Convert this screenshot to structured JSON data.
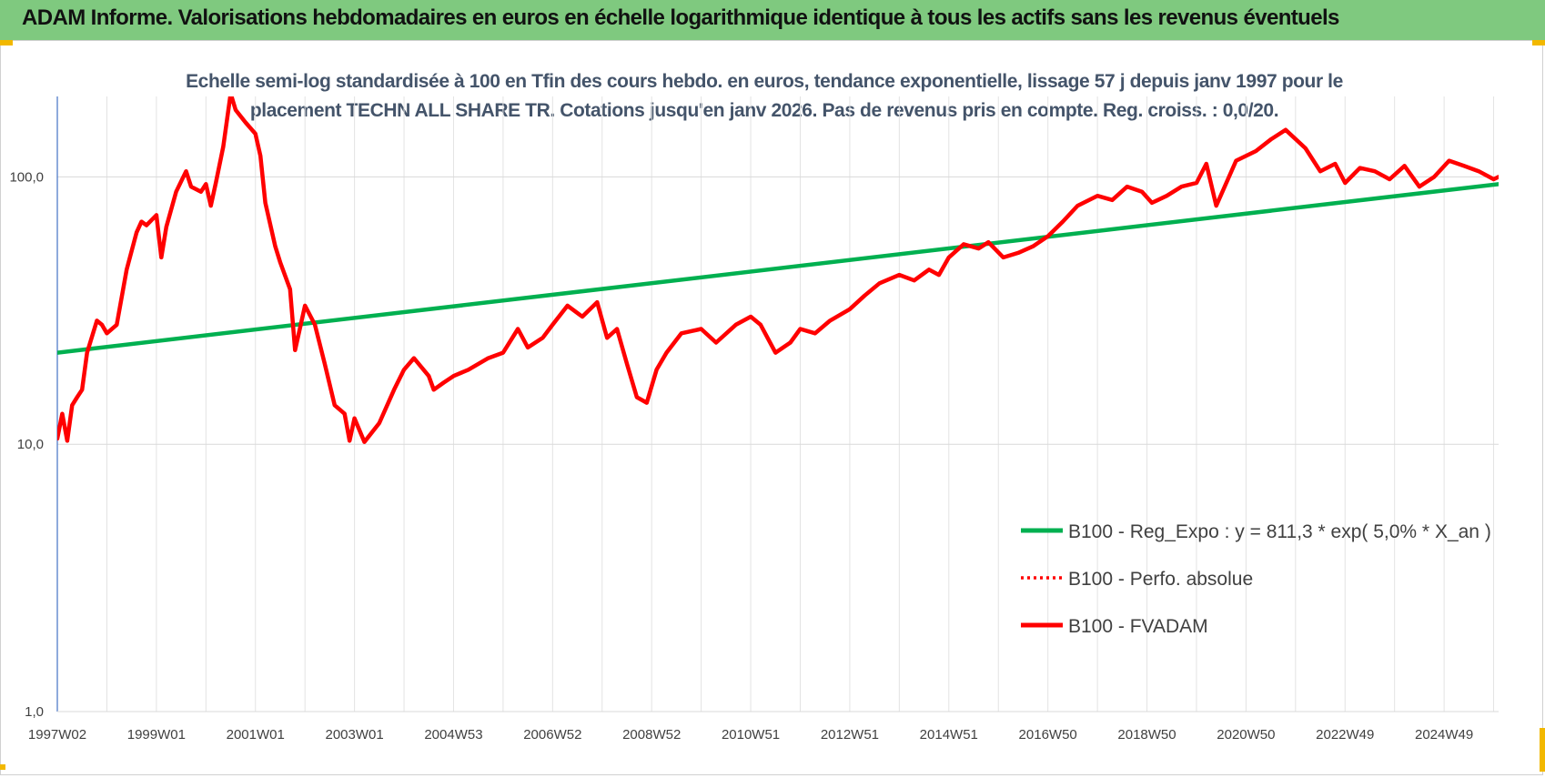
{
  "banner": {
    "title": "ADAM Informe. Valorisations hebdomadaires en euros en échelle logarithmique identique à tous les actifs sans les revenus éventuels"
  },
  "chart_data": {
    "type": "line",
    "title": "Echelle semi-log standardisée à 100 en Tfin des cours hebdo. en euros, tendance exponentielle, lissage 57 j depuis janv 1997 pour le placement TECHN ALL SHARE TR. Cotations jusqu'en janv 2026. Pas de revenus pris en compte. Reg. croiss. : 0,0/20.",
    "title_line1": "Echelle semi-log standardisée à 100 en Tfin des cours hebdo. en euros, tendance exponentielle, lissage 57 j depuis janv 1997 pour le",
    "title_line2": "placement TECHN ALL SHARE TR. Cotations jusqu'en janv 2026. Pas de revenus pris en compte. Reg. croiss. : 0,0/20.",
    "y_scale": "log",
    "ylim": [
      1,
      200
    ],
    "xlim": [
      1997.0,
      2026.1
    ],
    "grid": true,
    "legend_position": "bottom-right",
    "y_ticks": [
      {
        "value": 1,
        "label": "1,0"
      },
      {
        "value": 10,
        "label": "10,0"
      },
      {
        "value": 100,
        "label": "100,0"
      }
    ],
    "x_ticks": [
      {
        "value": 1997.0,
        "label": "1997W02"
      },
      {
        "value": 1999.0,
        "label": "1999W01"
      },
      {
        "value": 2001.0,
        "label": "2001W01"
      },
      {
        "value": 2003.0,
        "label": "2003W01"
      },
      {
        "value": 2005.0,
        "label": "2004W53"
      },
      {
        "value": 2007.0,
        "label": "2006W52"
      },
      {
        "value": 2009.0,
        "label": "2008W52"
      },
      {
        "value": 2011.0,
        "label": "2010W51"
      },
      {
        "value": 2013.0,
        "label": "2012W51"
      },
      {
        "value": 2015.0,
        "label": "2014W51"
      },
      {
        "value": 2017.0,
        "label": "2016W50"
      },
      {
        "value": 2019.0,
        "label": "2018W50"
      },
      {
        "value": 2021.0,
        "label": "2020W50"
      },
      {
        "value": 2023.0,
        "label": "2022W49"
      },
      {
        "value": 2025.0,
        "label": "2024W49"
      }
    ],
    "series": [
      {
        "name": "B100 - Reg_Expo : y = 811,3 * exp( 5,0% *  X_an )",
        "color": "#00b050",
        "style": "solid",
        "x": [
          1997.0,
          2026.1
        ],
        "values": [
          22.0,
          94.0
        ]
      },
      {
        "name": "B100 - Perfo. absolue",
        "color": "#ff0000",
        "style": "dotted",
        "x": [],
        "values": []
      },
      {
        "name": "B100 - FVADAM",
        "color": "#ff0000",
        "style": "solid",
        "x": [
          1997.0,
          1997.1,
          1997.2,
          1997.3,
          1997.4,
          1997.5,
          1997.6,
          1997.8,
          1997.9,
          1998.0,
          1998.2,
          1998.4,
          1998.6,
          1998.7,
          1998.8,
          1999.0,
          1999.1,
          1999.2,
          1999.4,
          1999.6,
          1999.7,
          1999.9,
          2000.0,
          2000.1,
          2000.2,
          2000.35,
          2000.5,
          2000.6,
          2000.8,
          2001.0,
          2001.1,
          2001.2,
          2001.4,
          2001.5,
          2001.7,
          2001.8,
          2002.0,
          2002.2,
          2002.4,
          2002.6,
          2002.8,
          2002.9,
          2003.0,
          2003.2,
          2003.5,
          2003.8,
          2004.0,
          2004.2,
          2004.5,
          2004.6,
          2004.8,
          2005.0,
          2005.3,
          2005.7,
          2006.0,
          2006.3,
          2006.5,
          2006.8,
          2007.0,
          2007.3,
          2007.6,
          2007.9,
          2008.1,
          2008.3,
          2008.5,
          2008.7,
          2008.9,
          2009.1,
          2009.3,
          2009.6,
          2010.0,
          2010.3,
          2010.7,
          2011.0,
          2011.2,
          2011.5,
          2011.8,
          2012.0,
          2012.3,
          2012.6,
          2013.0,
          2013.3,
          2013.6,
          2014.0,
          2014.3,
          2014.6,
          2014.8,
          2015.0,
          2015.3,
          2015.6,
          2015.8,
          2016.1,
          2016.4,
          2016.7,
          2017.0,
          2017.3,
          2017.6,
          2018.0,
          2018.3,
          2018.6,
          2018.9,
          2019.1,
          2019.4,
          2019.7,
          2020.0,
          2020.2,
          2020.4,
          2020.8,
          2021.2,
          2021.5,
          2021.8,
          2022.2,
          2022.5,
          2022.8,
          2023.0,
          2023.3,
          2023.6,
          2023.9,
          2024.2,
          2024.5,
          2024.8,
          2025.1,
          2025.4,
          2025.7,
          2026.0,
          2026.1
        ],
        "values": [
          10.5,
          13.0,
          10.3,
          14.0,
          15.0,
          16.0,
          22.0,
          29.0,
          28.0,
          26.0,
          28.0,
          45.0,
          62.0,
          68.0,
          66.0,
          72.0,
          50.0,
          65.0,
          88.0,
          105.0,
          92.0,
          88.0,
          94.0,
          78.0,
          95.0,
          130.0,
          205.0,
          178.0,
          160.0,
          145.0,
          120.0,
          80.0,
          55.0,
          48.0,
          38.0,
          22.5,
          33.0,
          28.0,
          20.0,
          14.0,
          13.0,
          10.3,
          12.5,
          10.2,
          12.0,
          16.0,
          19.0,
          21.0,
          18.0,
          16.0,
          17.0,
          18.0,
          19.0,
          21.0,
          22.0,
          27.0,
          23.0,
          25.0,
          28.0,
          33.0,
          30.0,
          34.0,
          25.0,
          27.0,
          20.0,
          15.0,
          14.3,
          19.0,
          22.0,
          26.0,
          27.0,
          24.0,
          28.0,
          30.0,
          28.0,
          22.0,
          24.0,
          27.0,
          26.0,
          29.0,
          32.0,
          36.0,
          40.0,
          43.0,
          41.0,
          45.0,
          43.0,
          50.0,
          56.0,
          54.0,
          57.0,
          50.0,
          52.0,
          55.0,
          60.0,
          68.0,
          78.0,
          85.0,
          82.0,
          92.0,
          88.0,
          80.0,
          85.0,
          92.0,
          95.0,
          112.0,
          78.0,
          115.0,
          125.0,
          138.0,
          150.0,
          128.0,
          105.0,
          112.0,
          95.0,
          108.0,
          105.0,
          98.0,
          110.0,
          92.0,
          100.0,
          115.0,
          110.0,
          105.0,
          98.0,
          100.0
        ]
      }
    ]
  }
}
